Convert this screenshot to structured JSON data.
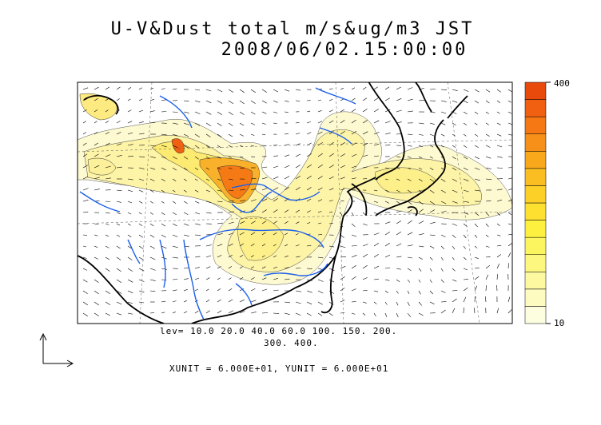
{
  "title": {
    "line1": "U-V&Dust total m/s&ug/m3 JST",
    "line2": "2008/06/02.15:00:00"
  },
  "contour_levels": {
    "line1": "lev= 10.0 20.0 40.0 60.0 100. 150. 200.",
    "line2": "300. 400."
  },
  "units_text": "XUNIT = 6.000E+01, YUNIT = 6.000E+01",
  "colorbar": {
    "max_label": "400",
    "min_label": "10",
    "colors": [
      "#fdfde0",
      "#fdfbc0",
      "#fdf9a0",
      "#fdf780",
      "#fdf560",
      "#fdf03e",
      "#fde030",
      "#fdd028",
      "#fbbe22",
      "#f9a81c",
      "#f79018",
      "#f57814",
      "#f06010",
      "#e84a0c"
    ]
  },
  "colors": {
    "rivers": "#1b5fe8",
    "coast": "#000000",
    "dust_light": "#fdf7c8",
    "dust_mid": "#fdf08a",
    "dust_high": "#f59a1c",
    "dust_peak": "#ef5a12"
  }
}
